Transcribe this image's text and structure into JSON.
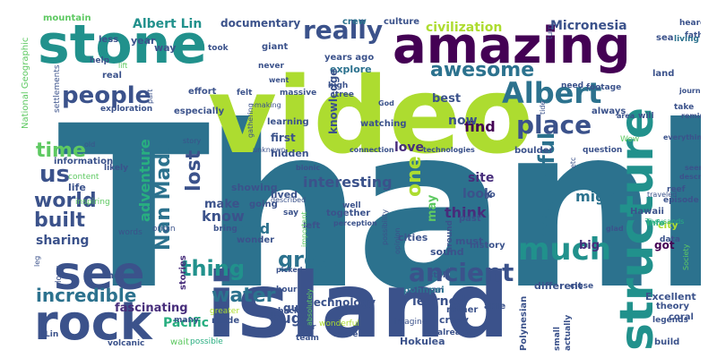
{
  "words": {
    "thank": "Thank",
    "video": "video",
    "island": "island",
    "stone": "stone",
    "amazing": "amazing",
    "see": "see",
    "rock": "rock",
    "structure": "structure",
    "people": "people",
    "ancient": "ancient",
    "much": "much",
    "really": "really",
    "albert": "Albert",
    "albert_lin": "Albert Lin",
    "awesome": "awesome",
    "place": "place",
    "beautiful": "beautiful",
    "nan_madol": "Nan Madol",
    "lost": "lost",
    "one": "one",
    "us": "us",
    "time": "time",
    "world": "world",
    "built": "built",
    "adventure": "adventure",
    "thing": "thing",
    "great": "great",
    "water": "water",
    "incredible": "incredible",
    "sharing": "sharing",
    "know": "know",
    "used": "used",
    "make": "make",
    "interesting": "interesting",
    "find": "find",
    "site": "site",
    "look": "look",
    "think": "think",
    "might": "might",
    "may": "may",
    "love": "love",
    "now": "now",
    "best": "best",
    "civilization": "civilization",
    "micronesia": "Micronesia",
    "documentary": "documentary",
    "culture": "culture",
    "crew": "crew",
    "mountain": "mountain",
    "national_geographic": "National Geographic",
    "pacific": "Pacific",
    "huge": "huge",
    "learned": "learned",
    "technology": "technology",
    "fascinating": "fascinating",
    "excellent": "Excellent",
    "hokulea": "Hokulea",
    "crazy": "crazy",
    "ocean": "ocean",
    "cities": "cities",
    "sound": "sound",
    "must": "must",
    "history": "history",
    "different": "different",
    "big": "big",
    "got": "got",
    "city": "city",
    "theory": "theory",
    "coral": "coral",
    "data": "data",
    "hawaii": "Hawaii",
    "episode": "episode",
    "reef": "reef",
    "info": "info",
    "lived": "lived",
    "first": "first",
    "hidden": "hidden",
    "going": "going",
    "showing": "showing",
    "stories": "stories",
    "show": "show",
    "made": "made",
    "guy": "guy",
    "pohnpei": "pohnpei",
    "rather": "rather",
    "able": "able",
    "polynesian": "Polynesian",
    "small": "small",
    "volcanic": "volcanic",
    "lin": "Lin",
    "wait": "wait",
    "possible": "possible",
    "team": "team",
    "move": "move",
    "imagine": "imagine",
    "already": "already",
    "actually": "actually",
    "build": "build",
    "close": "close",
    "far": "far",
    "wonderful": "wonderful",
    "picked": "picked",
    "still": "still",
    "left": "left",
    "hour": "hour",
    "back": "back",
    "greater": "greater",
    "many": "many",
    "life": "life",
    "information": "information",
    "likely": "likely",
    "content": "content",
    "inspiring": "inspiring",
    "words": "words",
    "origin": "origin",
    "year": "year",
    "less": "less",
    "help": "help",
    "real": "real",
    "way": "way",
    "giant": "giant",
    "took": "took",
    "never": "never",
    "years_ago": "years ago",
    "explore": "explore",
    "went": "went",
    "massive": "massive",
    "high": "high",
    "tree": "tree",
    "felt": "felt",
    "effort": "effort",
    "especially": "especially",
    "exploration": "exploration",
    "settlements": "settlements",
    "father": "father",
    "heard": "heard",
    "sea": "sea",
    "living": "living",
    "land": "land",
    "area": "area",
    "will": "will",
    "always": "always",
    "need": "need",
    "footage": "footage",
    "journey": "journey",
    "take": "take",
    "remind": "remind",
    "question": "question",
    "wow": "Wow",
    "everything": "everything",
    "seen": "seen",
    "describe": "describe",
    "traveled": "traveled",
    "legends": "legends",
    "thousands": "Thousands",
    "glad": "glad",
    "society": "Society",
    "boulder": "boulder",
    "technologies": "technologies",
    "connection": "connection",
    "unknown": "unknown",
    "bionic": "bionic",
    "learning": "learning",
    "watching": "watching",
    "knowledge": "knowledge",
    "together": "together",
    "well": "well",
    "perception": "perception",
    "say": "say",
    "important": "important",
    "past": "past",
    "around": "around",
    "go": "go",
    "opinion": "opinion",
    "possibility": "possibility",
    "bring": "bring",
    "wonder": "wonder",
    "gathering": "gathering",
    "god": "God",
    "tide": "tide",
    "turn": "turn",
    "etc": "etc",
    "making": "making",
    "part": "part",
    "absolutely": "absolutely",
    "described": "described",
    "leg": "leg",
    "story": "story",
    "lift": "lift",
    "old": "old",
    "long": "long"
  },
  "colors": {
    "purple": "#440154",
    "indigo": "#472d7b",
    "blue": "#3b528b",
    "steel": "#2c728e",
    "teal": "#21918c",
    "green_teal": "#28ae80",
    "green": "#5ec962",
    "lime": "#addc30",
    "yellow": "#fde725"
  }
}
